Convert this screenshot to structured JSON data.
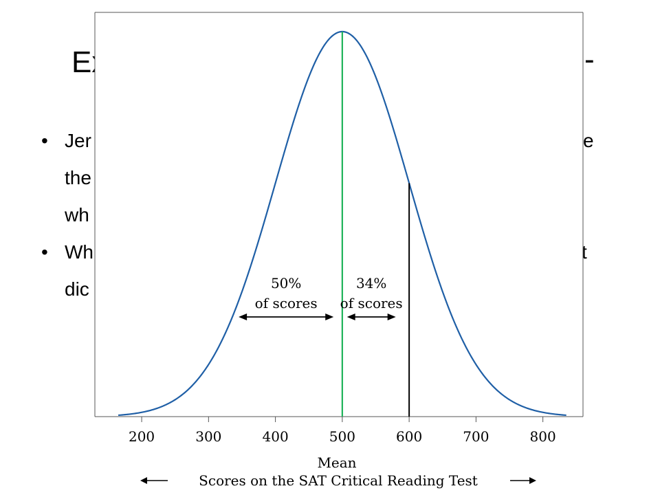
{
  "slide": {
    "title": "Ex",
    "title_tail": "-",
    "bullets": [
      {
        "marker": "•",
        "lines": [
          "Jer",
          "the",
          "wh"
        ],
        "line_tails": [
          "e",
          "",
          ""
        ]
      },
      {
        "marker": "•",
        "lines": [
          "Wh",
          "dic"
        ],
        "line_tails": [
          "t",
          ""
        ]
      }
    ]
  },
  "chart_data": {
    "type": "line",
    "title": "",
    "xlabel": "Scores on the SAT Critical Reading Test",
    "mean_label": "Mean",
    "ylabel": "",
    "x_ticks": [
      200,
      300,
      400,
      500,
      600,
      700,
      800
    ],
    "xlim": [
      130,
      860
    ],
    "distribution": {
      "kind": "normal",
      "mean": 500,
      "sd": 100,
      "x_range": [
        165,
        835
      ]
    },
    "mean_line": {
      "x": 500,
      "color": "#1fb35a"
    },
    "marker_line": {
      "x": 600,
      "color": "#000000"
    },
    "annotations": [
      {
        "line1": "50%",
        "line2": "of scores",
        "from": 345,
        "to": 487
      },
      {
        "line1": "34%",
        "line2": "of scores",
        "from": 507,
        "to": 580
      }
    ],
    "curve_color": "#1f5fa6",
    "grid": false
  }
}
